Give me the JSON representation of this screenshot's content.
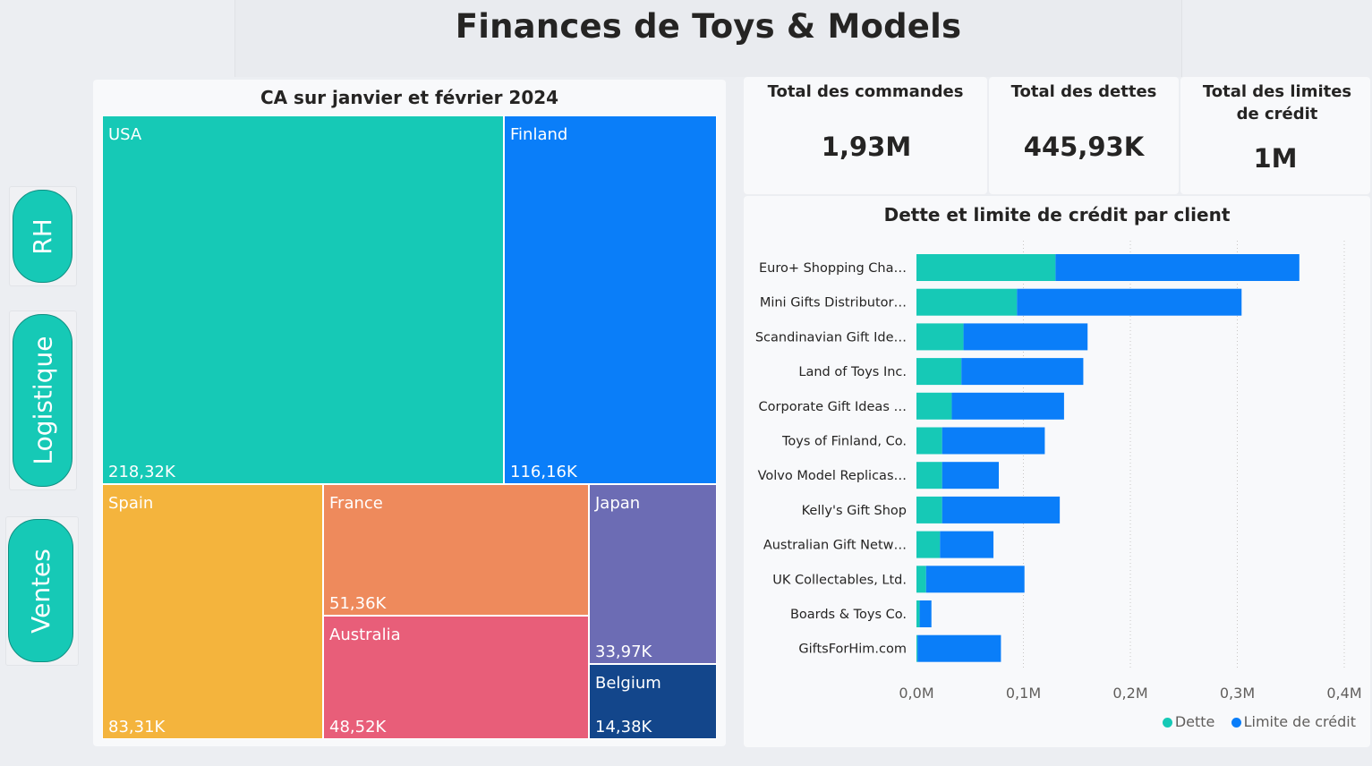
{
  "page": {
    "title": "Finances de Toys & Models"
  },
  "nav": [
    {
      "label": "RH"
    },
    {
      "label": "Logistique"
    },
    {
      "label": "Ventes"
    }
  ],
  "kpis": {
    "orders": {
      "label": "Total des commandes",
      "value": "1,93M"
    },
    "debts": {
      "label": "Total des dettes",
      "value": "445,93K"
    },
    "credit_limit": {
      "label": "Total des limites de crédit",
      "value": "1M"
    }
  },
  "colors": {
    "teal": "#16c9b6",
    "blue": "#0a7ef9",
    "spain": "#f4b43d",
    "france": "#ee8a5c",
    "australia": "#e85e79",
    "japan": "#6c6cb4",
    "belgium": "#13468b"
  },
  "chart_data": [
    {
      "type": "treemap",
      "title": "CA sur janvier et février 2024",
      "items": [
        {
          "name": "USA",
          "value": 218.32,
          "label": "218,32K",
          "color": "#16c9b6"
        },
        {
          "name": "Finland",
          "value": 116.16,
          "label": "116,16K",
          "color": "#0a7ef9"
        },
        {
          "name": "Spain",
          "value": 83.31,
          "label": "83,31K",
          "color": "#f4b43d"
        },
        {
          "name": "France",
          "value": 51.36,
          "label": "51,36K",
          "color": "#ee8a5c"
        },
        {
          "name": "Australia",
          "value": 48.52,
          "label": "48,52K",
          "color": "#e85e79"
        },
        {
          "name": "Japan",
          "value": 33.97,
          "label": "33,97K",
          "color": "#6c6cb4"
        },
        {
          "name": "Belgium",
          "value": 14.38,
          "label": "14,38K",
          "color": "#13468b"
        }
      ]
    },
    {
      "type": "bar",
      "orientation": "horizontal",
      "stacked": true,
      "title": "Dette et limite de crédit par client",
      "categories": [
        "Euro+ Shopping Cha…",
        "Mini Gifts Distributor…",
        "Scandinavian Gift Ide…",
        "Land of Toys Inc.",
        "Corporate Gift Ideas …",
        "Toys of Finland, Co.",
        "Volvo Model Replicas…",
        "Kelly's Gift Shop",
        "Australian Gift Netw…",
        "UK Collectables, Ltd.",
        "Boards & Toys Co.",
        "GiftsForHim.com"
      ],
      "series": [
        {
          "name": "Dette",
          "color": "#16c9b6",
          "values": [
            0.13,
            0.094,
            0.044,
            0.042,
            0.033,
            0.024,
            0.024,
            0.024,
            0.022,
            0.009,
            0.003,
            0.001
          ]
        },
        {
          "name": "Limite de crédit",
          "color": "#0a7ef9",
          "values": [
            0.228,
            0.21,
            0.116,
            0.114,
            0.105,
            0.096,
            0.053,
            0.11,
            0.05,
            0.092,
            0.011,
            0.078
          ]
        }
      ],
      "xlim": [
        0,
        0.4
      ],
      "x_ticks": [
        "0,0M",
        "0,1M",
        "0,2M",
        "0,3M",
        "0,4M"
      ],
      "x_tick_values": [
        0,
        0.1,
        0.2,
        0.3,
        0.4
      ],
      "grid": true,
      "legend": "bottom-right"
    }
  ]
}
